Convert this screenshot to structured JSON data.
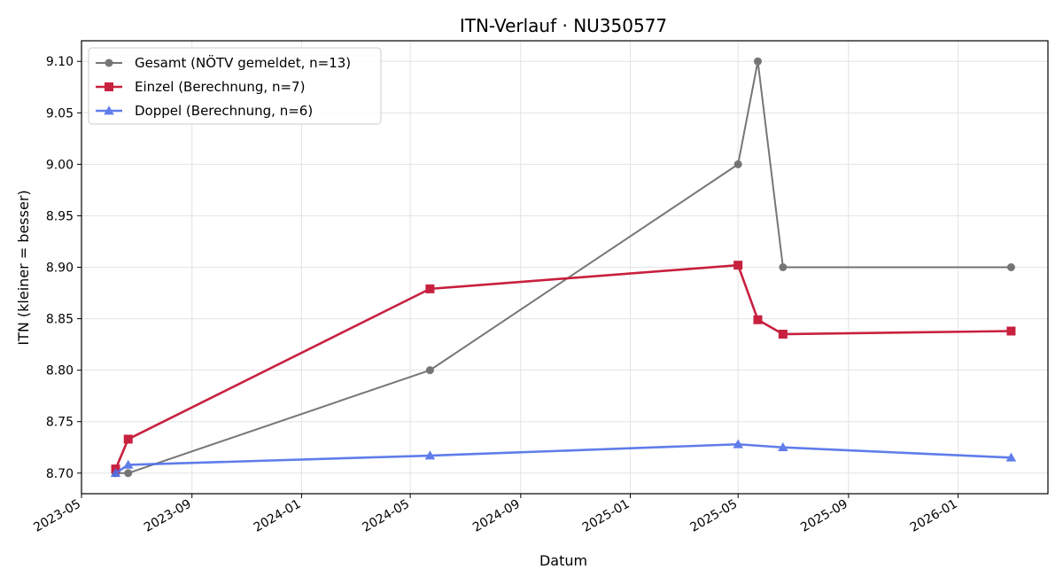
{
  "chart_data": {
    "type": "line",
    "title": "ITN-Verlauf · NU350577",
    "xlabel": "Datum",
    "ylabel": "ITN  (kleiner = besser)",
    "xlim": [
      "2023-05-01",
      "2026-04-11"
    ],
    "ylim": [
      8.68,
      9.12
    ],
    "x_ticks": [
      "2023-05",
      "2023-09",
      "2024-01",
      "2024-05",
      "2024-09",
      "2025-01",
      "2025-05",
      "2025-09",
      "2026-01"
    ],
    "y_ticks": [
      8.7,
      8.75,
      8.8,
      8.85,
      8.9,
      8.95,
      9.0,
      9.05,
      9.1
    ],
    "grid": true,
    "legend_position": "top-left",
    "series": [
      {
        "name": "Gesamt (NÖTV gemeldet, n=13)",
        "color": "#555555",
        "marker": "circle",
        "x": [
          "2023-06-08",
          "2023-06-22",
          "2024-05-23",
          "2025-05-01",
          "2025-05-23",
          "2025-06-20",
          "2026-03-01"
        ],
        "y": [
          8.7,
          8.7,
          8.8,
          9.0,
          9.1,
          8.9,
          8.9
        ]
      },
      {
        "name": "Einzel (Berechnung, n=7)",
        "color": "#c8203f",
        "marker": "square",
        "x": [
          "2023-06-08",
          "2023-06-22",
          "2024-05-23",
          "2025-05-01",
          "2025-05-23",
          "2025-06-20",
          "2026-03-01"
        ],
        "y": [
          8.704,
          8.733,
          8.879,
          8.902,
          8.849,
          8.835,
          8.838
        ]
      },
      {
        "name": "Doppel (Berechnung, n=6)",
        "color": "#4f6fe8",
        "marker": "triangle",
        "x": [
          "2023-06-08",
          "2023-06-22",
          "2024-05-23",
          "2025-05-01",
          "2025-06-20",
          "2026-03-01"
        ],
        "y": [
          8.7,
          8.708,
          8.717,
          8.728,
          8.725,
          8.715
        ]
      }
    ]
  }
}
